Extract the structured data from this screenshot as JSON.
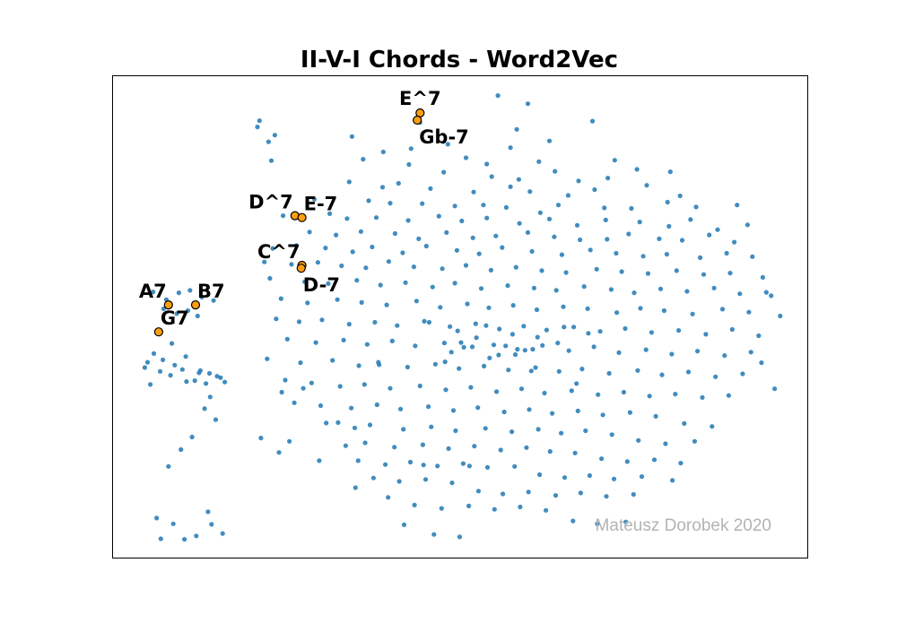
{
  "chart_data": {
    "type": "scatter",
    "title": "II-V-I Chords - Word2Vec",
    "watermark": "Mateusz Dorobek 2020",
    "xlim": [
      0,
      100
    ],
    "ylim": [
      0,
      100
    ],
    "grid": false,
    "legend": "none",
    "axes_ticks": false,
    "colors": {
      "points": "#2c7fb8",
      "highlight_fill": "#ff9f0f",
      "highlight_edge": "#000000"
    },
    "highlighted": [
      {
        "label": "E^7",
        "x": 44.3,
        "y": 92.2,
        "label_position": "above"
      },
      {
        "label": "Gb-7",
        "x": 43.9,
        "y": 90.7,
        "label_position": "below"
      },
      {
        "label": "D^7",
        "x": 26.3,
        "y": 70.9,
        "label_position": "above-left"
      },
      {
        "label": "E-7",
        "x": 27.3,
        "y": 70.5,
        "label_position": "above-right"
      },
      {
        "label": "C^7",
        "x": 27.3,
        "y": 60.6,
        "label_position": "above-left"
      },
      {
        "label": "D-7",
        "x": 27.2,
        "y": 60.0,
        "label_position": "below"
      },
      {
        "label": "A7",
        "x": 8.1,
        "y": 52.4,
        "label_position": "above-left"
      },
      {
        "label": "B7",
        "x": 12.0,
        "y": 52.4,
        "label_position": "above-right"
      },
      {
        "label": "G7",
        "x": 6.7,
        "y": 46.8,
        "label_position": "above-right"
      }
    ],
    "points_x": [
      55.5,
      59.8,
      44.3,
      58.2,
      69.1,
      34.5,
      48.3,
      62.9,
      39.0,
      43.0,
      57.3,
      50.9,
      61.4,
      53.9,
      72.3,
      36.1,
      42.7,
      47.7,
      54.6,
      63.7,
      58.5,
      71.3,
      75.5,
      80.3,
      67.1,
      34.1,
      38.9,
      41.2,
      45.8,
      52.0,
      57.3,
      60.1,
      65.6,
      69.4,
      76.9,
      81.7,
      29.1,
      36.9,
      40.0,
      44.6,
      49.3,
      53.4,
      56.7,
      61.6,
      64.2,
      70.8,
      74.7,
      79.9,
      84.0,
      89.9,
      24.6,
      31.3,
      33.8,
      38.0,
      42.6,
      47.0,
      50.3,
      53.9,
      58.6,
      62.9,
      66.9,
      71.0,
      75.9,
      80.1,
      83.2,
      87.1,
      91.4,
      28.4,
      32.2,
      35.8,
      40.7,
      44.1,
      48.1,
      51.9,
      55.2,
      59.8,
      63.6,
      67.3,
      71.2,
      74.3,
      78.7,
      82.0,
      85.9,
      89.5,
      23.1,
      26.5,
      30.7,
      34.6,
      37.4,
      41.8,
      45.2,
      49.6,
      52.8,
      56.1,
      60.4,
      64.7,
      68.8,
      72.5,
      76.4,
      79.8,
      84.6,
      88.4,
      92.1,
      21.9,
      25.8,
      29.6,
      33.0,
      36.5,
      39.8,
      43.4,
      47.5,
      50.9,
      54.5,
      58.1,
      61.8,
      65.3,
      69.7,
      73.3,
      77.1,
      81.2,
      85.1,
      88.9,
      93.6,
      22.7,
      27.7,
      31.1,
      35.2,
      38.6,
      42.2,
      46.1,
      49.3,
      53.1,
      56.9,
      60.7,
      63.9,
      67.9,
      71.8,
      75.1,
      78.9,
      82.7,
      86.6,
      90.3,
      94.8,
      24.3,
      28.1,
      32.4,
      35.9,
      39.5,
      43.8,
      47.2,
      51.1,
      54.2,
      57.7,
      61.1,
      64.9,
      68.4,
      72.6,
      76.0,
      79.4,
      83.5,
      87.8,
      91.6,
      96.1,
      23.6,
      26.9,
      30.2,
      34.1,
      37.8,
      41.0,
      44.9,
      48.6,
      52.3,
      55.7,
      59.2,
      62.5,
      66.4,
      70.2,
      73.8,
      77.6,
      81.5,
      85.4,
      89.2,
      93.0,
      25.2,
      29.3,
      33.3,
      36.7,
      40.3,
      43.6,
      47.8,
      50.6,
      54.9,
      58.3,
      61.9,
      65.7,
      69.3,
      72.9,
      76.8,
      80.5,
      84.2,
      88.1,
      91.9,
      22.3,
      27.1,
      31.7,
      35.5,
      38.3,
      42.5,
      46.5,
      49.9,
      53.5,
      57.0,
      60.9,
      64.3,
      67.6,
      71.5,
      75.6,
      79.1,
      82.9,
      86.8,
      90.7,
      24.9,
      28.7,
      32.8,
      36.3,
      40.0,
      44.3,
      48.0,
      51.6,
      55.3,
      58.9,
      62.2,
      66.1,
      69.9,
      73.6,
      77.3,
      81.0,
      84.9,
      88.7,
      26.2,
      30.0,
      34.4,
      38.1,
      41.5,
      45.5,
      49.1,
      52.6,
      56.4,
      60.0,
      63.3,
      67.0,
      70.6,
      74.5,
      78.2,
      82.3,
      86.3,
      30.8,
      34.9,
      37.1,
      41.9,
      45.9,
      49.4,
      53.7,
      57.5,
      61.3,
      64.6,
      68.1,
      71.9,
      75.7,
      79.6,
      83.8,
      33.6,
      36.4,
      40.6,
      44.7,
      48.4,
      52.1,
      55.9,
      59.6,
      63.0,
      66.6,
      70.4,
      74.1,
      78.0,
      81.8,
      35.4,
      39.3,
      42.9,
      46.8,
      50.5,
      54.0,
      57.9,
      61.5,
      65.1,
      68.7,
      72.2,
      76.2,
      80.6,
      37.6,
      41.3,
      45.1,
      48.9,
      52.7,
      56.2,
      59.9,
      63.8,
      67.4,
      71.1,
      75.0,
      39.7,
      43.5,
      47.4,
      51.3,
      55.0,
      58.7,
      62.4,
      66.3,
      69.8,
      73.9,
      42.0,
      46.3,
      50.0,
      53.8,
      57.6,
      61.2,
      65.0,
      68.5,
      45.6,
      49.7,
      52.4,
      56.6,
      60.5,
      64.1,
      48.8,
      51.8,
      55.6,
      59.4,
      50.2,
      54.3,
      5.1,
      6.0,
      7.3,
      9.0,
      10.6,
      12.7,
      14.0,
      15.6,
      4.7,
      6.9,
      8.4,
      10.1,
      11.9,
      13.5,
      15.1,
      16.2,
      5.5,
      7.8,
      9.6,
      11.2,
      12.9,
      14.6,
      5.9,
      7.4,
      9.3,
      10.9,
      12.3,
      14.3,
      15.9,
      6.4,
      8.8,
      10.4,
      12.1,
      13.8,
      7.0,
      8.1,
      9.9,
      11.5,
      13.3,
      14.9,
      8.6,
      10.7,
      12.5,
      14.1,
      32.5,
      44.8,
      51.4,
      58.0,
      60.3,
      66.8,
      38.4,
      47.9,
      35.0,
      29.8,
      24.0,
      21.4,
      23.4,
      20.9,
      21.2,
      22.5,
      22.9,
      25.5,
      24.4,
      27.5,
      93.4,
      95.3,
      94.1,
      90.8,
      97.4,
      74.0,
      76.6,
      86.9,
      90.0,
      55.8,
      63.1,
      69.0,
      78.5,
      84.4,
      41.6,
      36.0,
      39.2,
      31.9,
      28.9,
      30.5
    ],
    "points_y": [
      95.8,
      94.1,
      90.2,
      88.8,
      90.5,
      87.3,
      85.7,
      86.4,
      84.1,
      84.8,
      85.0,
      82.9,
      82.1,
      81.6,
      82.4,
      82.6,
      81.5,
      79.9,
      79.0,
      80.1,
      78.4,
      78.7,
      80.5,
      80.0,
      78.1,
      77.9,
      76.8,
      77.6,
      76.5,
      75.8,
      76.9,
      75.9,
      75.1,
      76.3,
      77.2,
      75.0,
      74.3,
      74.0,
      73.5,
      73.4,
      72.9,
      73.1,
      72.6,
      71.5,
      73.1,
      72.5,
      72.4,
      73.7,
      72.7,
      73.1,
      70.9,
      71.3,
      70.3,
      70.5,
      69.9,
      70.8,
      69.8,
      70.4,
      69.3,
      70.2,
      68.9,
      70.0,
      69.6,
      68.7,
      70.1,
      68.0,
      69.0,
      67.5,
      66.9,
      67.6,
      67.2,
      66.1,
      67.4,
      66.3,
      66.7,
      67.4,
      66.5,
      65.9,
      66.0,
      67.1,
      66.1,
      65.8,
      66.9,
      65.4,
      64.1,
      64.7,
      64.2,
      63.4,
      64.4,
      63.2,
      64.6,
      63.7,
      63.0,
      64.3,
      63.5,
      62.8,
      63.8,
      63.1,
      62.5,
      62.9,
      62.2,
      63.1,
      62.4,
      61.3,
      60.8,
      61.2,
      60.5,
      60.1,
      61.4,
      60.3,
      59.9,
      60.6,
      59.6,
      60.2,
      59.5,
      59.1,
      59.8,
      59.3,
      58.9,
      59.5,
      58.7,
      59.0,
      58.1,
      57.9,
      57.2,
      56.8,
      57.5,
      56.5,
      57.0,
      56.1,
      56.9,
      55.8,
      56.4,
      55.9,
      55.4,
      56.2,
      55.6,
      54.9,
      55.7,
      55.2,
      55.9,
      54.7,
      54.3,
      53.7,
      52.8,
      53.5,
      52.9,
      52.4,
      53.2,
      51.9,
      52.6,
      51.8,
      52.3,
      51.4,
      52.0,
      51.6,
      50.8,
      51.7,
      51.2,
      50.5,
      51.5,
      50.9,
      50.1,
      49.5,
      48.9,
      49.3,
      48.4,
      48.8,
      48.1,
      49.0,
      47.9,
      48.5,
      47.4,
      48.0,
      47.2,
      47.8,
      46.9,
      47.5,
      46.7,
      47.1,
      46.3,
      47.3,
      46.0,
      45.3,
      44.6,
      45.1,
      44.2,
      44.9,
      43.9,
      44.5,
      43.6,
      44.1,
      43.2,
      44.0,
      42.9,
      43.7,
      42.5,
      43.1,
      42.2,
      42.8,
      41.9,
      42.6,
      41.2,
      40.4,
      40.9,
      39.8,
      40.5,
      39.5,
      40.1,
      39.2,
      39.7,
      38.9,
      39.4,
      38.6,
      39.1,
      38.2,
      38.8,
      37.9,
      38.5,
      37.5,
      38.1,
      36.8,
      36.2,
      35.5,
      35.9,
      35.1,
      35.6,
      34.8,
      35.3,
      34.4,
      35.0,
      34.1,
      34.6,
      33.8,
      34.3,
      33.5,
      33.9,
      33.2,
      33.6,
      32.1,
      31.5,
      31.0,
      31.7,
      30.8,
      31.3,
      30.5,
      31.1,
      30.2,
      30.7,
      29.9,
      30.4,
      29.6,
      30.1,
      29.3,
      27.8,
      27.2,
      27.9,
      26.9,
      27.5,
      26.6,
      27.1,
      26.3,
      26.8,
      26.1,
      26.6,
      25.8,
      26.3,
      25.5,
      24.3,
      23.6,
      24.1,
      23.2,
      23.8,
      22.9,
      23.4,
      22.6,
      23.1,
      22.3,
      22.8,
      22.0,
      21.7,
      20.5,
      19.9,
      20.3,
      19.6,
      20.1,
      19.3,
      19.8,
      19.0,
      19.5,
      18.7,
      18.9,
      17.2,
      16.6,
      17.0,
      16.3,
      16.8,
      16.0,
      16.5,
      15.8,
      16.2,
      15.5,
      13.8,
      13.2,
      13.6,
      12.9,
      13.4,
      12.7,
      13.1,
      12.5,
      10.9,
      10.2,
      10.7,
      10.0,
      10.5,
      9.8,
      7.6,
      7.0,
      7.4,
      6.8,
      4.8,
      4.3,
      48.1,
      46.3,
      45.7,
      47.8,
      46.5,
      48.8,
      47.0,
      45.6,
      43.9,
      43.2,
      44.5,
      42.6,
      43.7,
      42.0,
      43.0,
      44.6,
      41.4,
      40.5,
      42.3,
      41.0,
      39.9,
      41.7,
      38.8,
      38.2,
      37.3,
      39.4,
      38.6,
      37.8,
      39.0,
      36.7,
      36.1,
      37.6,
      36.4,
      35.9,
      53.5,
      54.9,
      55.4,
      54.0,
      53.3,
      55.1,
      51.6,
      50.6,
      51.2,
      50.1,
      6.9,
      5.0,
      8.2,
      7.0,
      3.8,
      4.5,
      9.5,
      3.9,
      18.9,
      22.4,
      25.0,
      30.9,
      28.6,
      44.4,
      36.5,
      38.3,
      33.3,
      28.0,
      19.2,
      19.0,
      42.1,
      38.7,
      36.1,
      40.0,
      40.6,
      14.5,
      20.1,
      21.8,
      24.8,
      87.6,
      89.3,
      90.6,
      86.2,
      82.3,
      24.1,
      34.3,
      35.1,
      40.4,
      35.0,
      55.0
    ]
  }
}
